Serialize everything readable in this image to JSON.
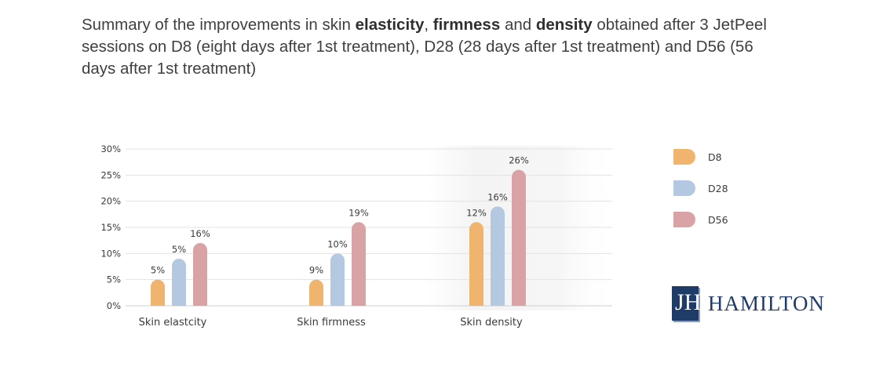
{
  "heading": {
    "p1": "Summary of the improvements in skin ",
    "b1": "elasticity",
    "p2": ", ",
    "b2": "firmness",
    "p3": " and ",
    "b3": "density",
    "p4": " obtained after 3 JetPeel sessions on D8 (eight days after 1st treatment), D28 (28 days after 1st treatment) and D56 (56 days after 1st treatment)"
  },
  "chart_data": {
    "type": "bar",
    "categories": [
      "Skin elastcity",
      "Skin firmness",
      "Skin density"
    ],
    "series": [
      {
        "name": "D8",
        "values": [
          5,
          5,
          16
        ],
        "color": "#f0b46e"
      },
      {
        "name": "D28",
        "values": [
          9,
          10,
          19
        ],
        "color": "#b5c8e1"
      },
      {
        "name": "D56",
        "values": [
          12,
          16,
          26
        ],
        "color": "#d9a2a4"
      }
    ],
    "value_labels": [
      [
        "5%",
        "5%",
        "16%"
      ],
      [
        "9%",
        "10%",
        "19%"
      ],
      [
        "12%",
        "16%",
        "26%"
      ]
    ],
    "yticks": [
      "0%",
      "5%",
      "10%",
      "15%",
      "20%",
      "25%",
      "30%"
    ],
    "ylim": [
      0,
      30
    ],
    "legend": "right",
    "grid": true
  },
  "logo": {
    "mark": "JH",
    "text": "HAMILTON",
    "color": "#1f3b67"
  }
}
